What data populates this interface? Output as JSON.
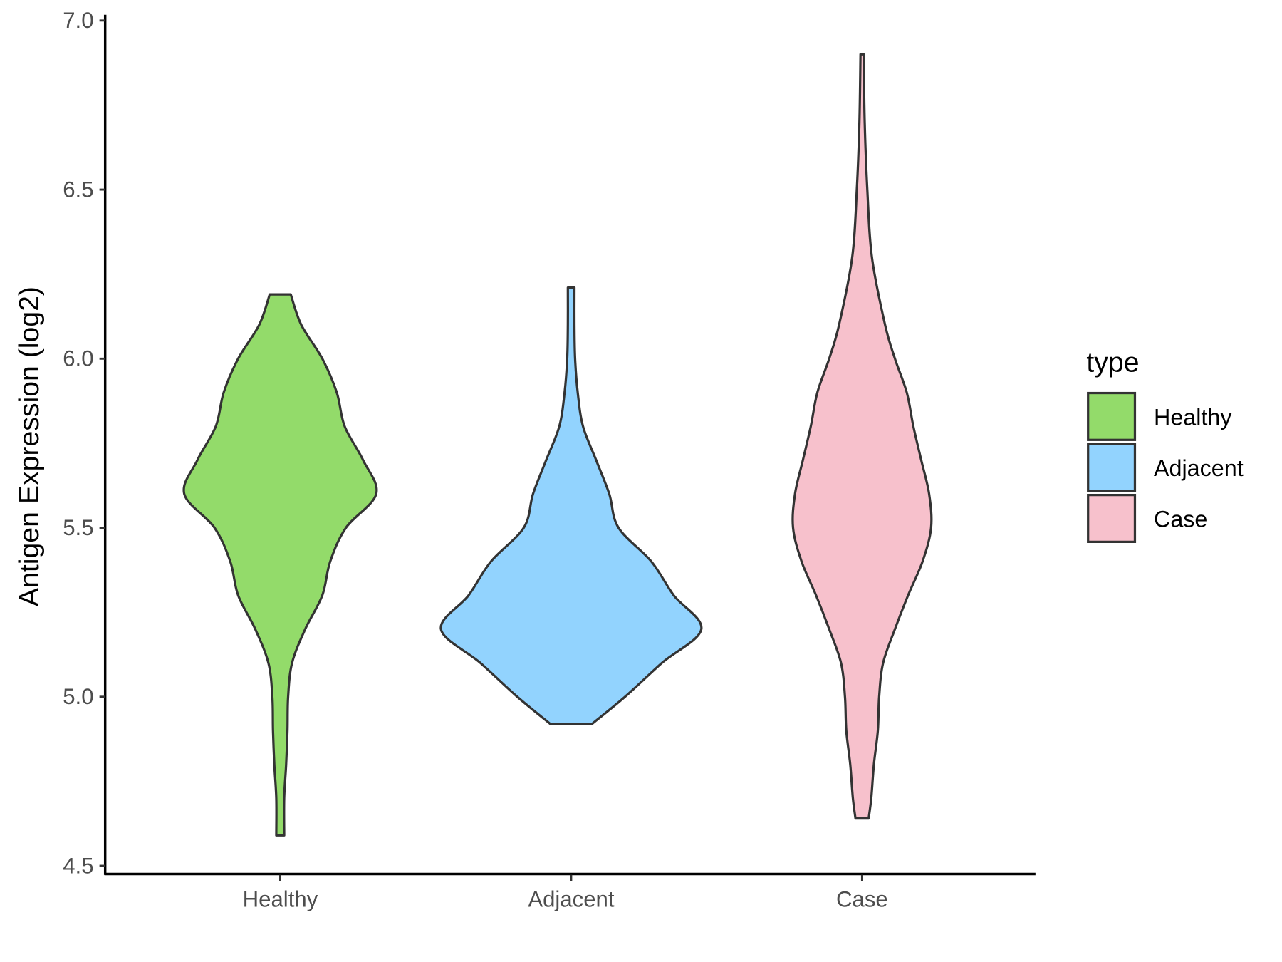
{
  "chart_data": {
    "type": "violin",
    "title": "",
    "xlabel": "",
    "ylabel": "Antigen Expression (log2)",
    "ylim": [
      4.5,
      7.0
    ],
    "yticks": [
      "4.5",
      "5.0",
      "5.5",
      "6.0",
      "6.5",
      "7.0"
    ],
    "categories": [
      "Healthy",
      "Adjacent",
      "Case"
    ],
    "legend": {
      "title": "type",
      "position": "right",
      "entries": [
        "Healthy",
        "Adjacent",
        "Case"
      ]
    },
    "colors": {
      "Healthy": "#93DB6A",
      "Adjacent": "#92D3FE",
      "Case": "#F7C1CC",
      "outline": "#333333"
    },
    "series": [
      {
        "name": "Healthy",
        "min": 4.59,
        "max": 6.19,
        "density": [
          [
            4.59,
            0.03
          ],
          [
            4.7,
            0.03
          ],
          [
            4.8,
            0.045
          ],
          [
            4.9,
            0.055
          ],
          [
            5.0,
            0.06
          ],
          [
            5.1,
            0.09
          ],
          [
            5.2,
            0.19
          ],
          [
            5.3,
            0.32
          ],
          [
            5.4,
            0.38
          ],
          [
            5.5,
            0.5
          ],
          [
            5.6,
            0.73
          ],
          [
            5.7,
            0.63
          ],
          [
            5.8,
            0.49
          ],
          [
            5.9,
            0.43
          ],
          [
            6.0,
            0.32
          ],
          [
            6.1,
            0.16
          ],
          [
            6.19,
            0.08
          ]
        ]
      },
      {
        "name": "Adjacent",
        "min": 4.92,
        "max": 6.21,
        "density": [
          [
            4.92,
            0.16
          ],
          [
            5.0,
            0.41
          ],
          [
            5.1,
            0.69
          ],
          [
            5.2,
            0.99
          ],
          [
            5.3,
            0.78
          ],
          [
            5.4,
            0.61
          ],
          [
            5.5,
            0.36
          ],
          [
            5.6,
            0.29
          ],
          [
            5.7,
            0.19
          ],
          [
            5.8,
            0.09
          ],
          [
            5.9,
            0.05
          ],
          [
            6.0,
            0.03
          ],
          [
            6.1,
            0.025
          ],
          [
            6.21,
            0.025
          ]
        ]
      },
      {
        "name": "Case",
        "min": 4.64,
        "max": 6.9,
        "density": [
          [
            4.64,
            0.05
          ],
          [
            4.7,
            0.07
          ],
          [
            4.8,
            0.09
          ],
          [
            4.9,
            0.12
          ],
          [
            5.0,
            0.13
          ],
          [
            5.1,
            0.16
          ],
          [
            5.2,
            0.25
          ],
          [
            5.3,
            0.35
          ],
          [
            5.4,
            0.46
          ],
          [
            5.5,
            0.525
          ],
          [
            5.6,
            0.51
          ],
          [
            5.7,
            0.45
          ],
          [
            5.8,
            0.39
          ],
          [
            5.9,
            0.34
          ],
          [
            6.0,
            0.25
          ],
          [
            6.1,
            0.175
          ],
          [
            6.3,
            0.075
          ],
          [
            6.5,
            0.04
          ],
          [
            6.7,
            0.02
          ],
          [
            6.9,
            0.012
          ]
        ]
      }
    ]
  }
}
